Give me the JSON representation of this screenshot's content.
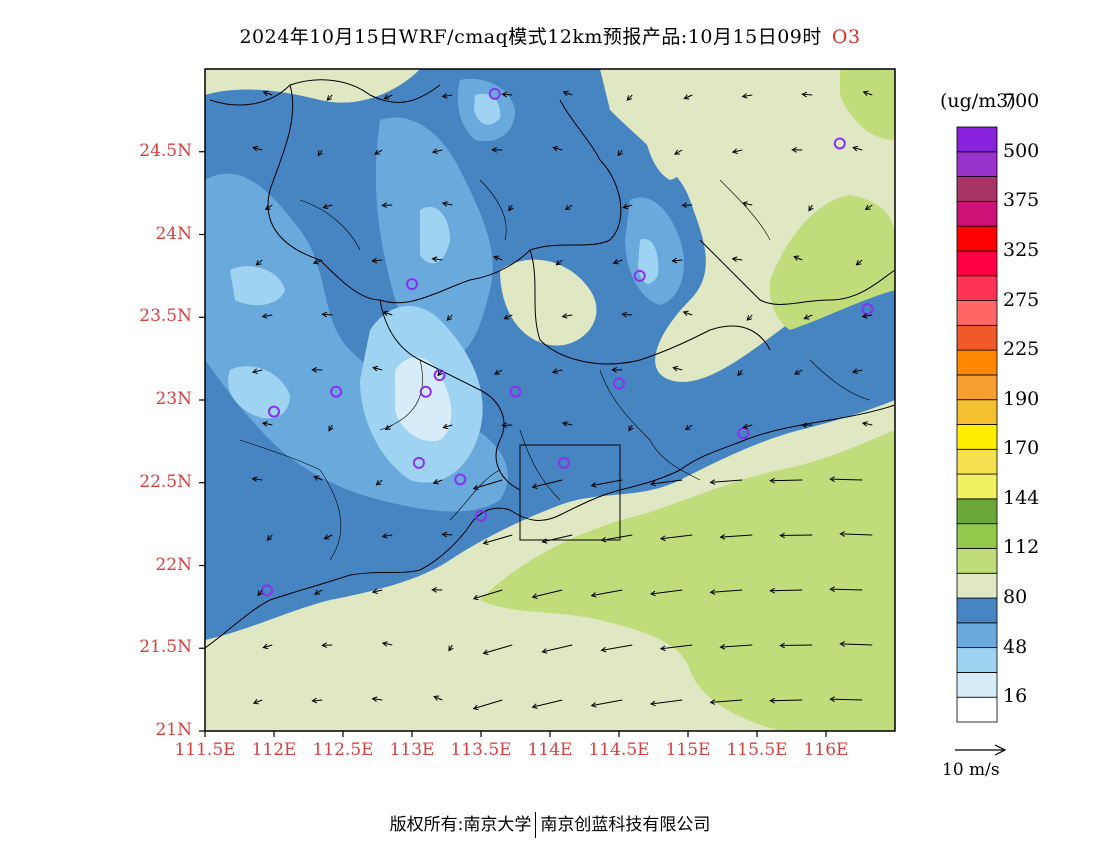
{
  "title": {
    "text": "2024年10月15日WRF/cmaq模式12km预报产品:10月15日09时",
    "pollutant": "O3"
  },
  "map": {
    "lon_ticks": [
      "111.5E",
      "112E",
      "112.5E",
      "113E",
      "113.5E",
      "114E",
      "114.5E",
      "115E",
      "115.5E",
      "116E"
    ],
    "lon_values": [
      111.5,
      112,
      112.5,
      113,
      113.5,
      114,
      114.5,
      115,
      115.5,
      116
    ],
    "lat_ticks": [
      "21N",
      "21.5N",
      "22N",
      "22.5N",
      "23N",
      "23.5N",
      "24N",
      "24.5N"
    ],
    "lat_values": [
      21,
      21.5,
      22,
      22.5,
      23,
      23.5,
      24,
      24.5
    ],
    "lon_range": [
      111.5,
      116.5
    ],
    "lat_range": [
      21,
      25
    ],
    "station_markers": [
      [
        113.6,
        24.85
      ],
      [
        116.1,
        24.55
      ],
      [
        114.65,
        23.75
      ],
      [
        113.0,
        23.7
      ],
      [
        116.3,
        23.55
      ],
      [
        113.2,
        23.15
      ],
      [
        113.1,
        23.05
      ],
      [
        112.45,
        23.05
      ],
      [
        113.75,
        23.05
      ],
      [
        114.5,
        23.1
      ],
      [
        112.0,
        22.93
      ],
      [
        115.4,
        22.8
      ],
      [
        113.05,
        22.62
      ],
      [
        113.35,
        22.52
      ],
      [
        114.1,
        22.62
      ],
      [
        113.5,
        22.3
      ],
      [
        111.95,
        21.85
      ]
    ]
  },
  "colorbar": {
    "unit": "(ug/m3)",
    "colors": [
      "#ffffff",
      "#d6ecf8",
      "#9fd3f2",
      "#69a9db",
      "#4785c2",
      "#dfe8c2",
      "#c1dc7a",
      "#92c84b",
      "#6aa83a",
      "#f0f060",
      "#f5e050",
      "#ffee00",
      "#f5c030",
      "#f5a030",
      "#ff8800",
      "#f05a28",
      "#ff6666",
      "#ff3355",
      "#ff0044",
      "#ff0000",
      "#cc1177",
      "#aa3366",
      "#9933cc",
      "#8822dd"
    ],
    "labels": [
      "16",
      "48",
      "80",
      "112",
      "144",
      "170",
      "190",
      "225",
      "275",
      "325",
      "375",
      "500",
      "700"
    ]
  },
  "wind": {
    "reference_label": "10 m/s"
  },
  "footer": {
    "left": "版权所有:南京大学",
    "right": "南京创蓝科技有限公司"
  }
}
